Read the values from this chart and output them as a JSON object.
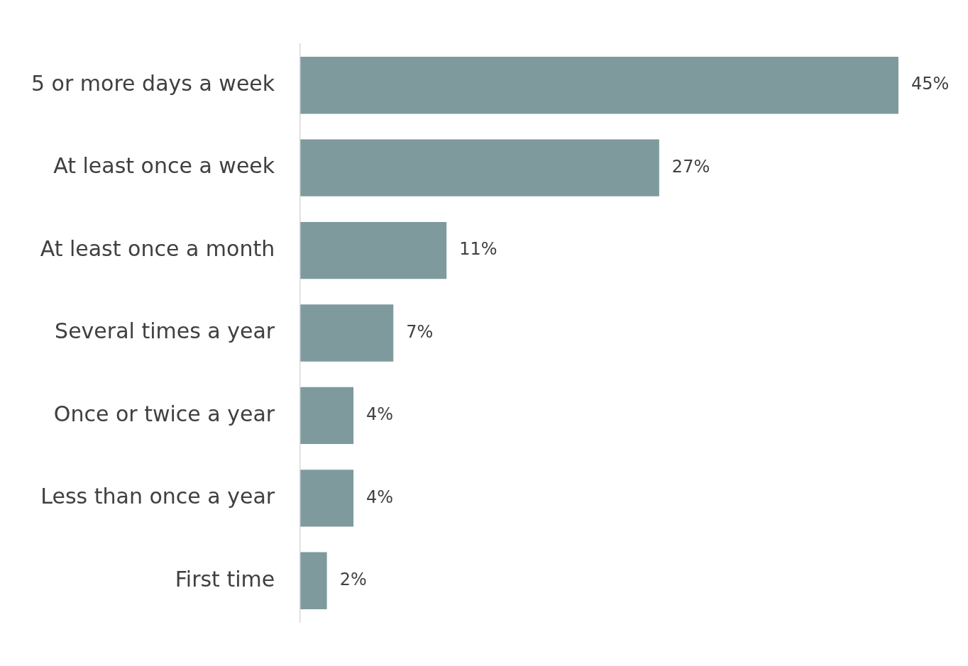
{
  "chart_data": {
    "type": "bar",
    "orientation": "horizontal",
    "categories": [
      "5 or more days a week",
      "At least once a week",
      "At least once a month",
      "Several times a year",
      "Once or twice a year",
      "Less than once a year",
      "First time"
    ],
    "values": [
      45,
      27,
      11,
      7,
      4,
      4,
      2
    ],
    "value_labels": [
      "45%",
      "27%",
      "11%",
      "7%",
      "4%",
      "4%",
      "2%"
    ],
    "color": "#7f9a9c",
    "grid": false,
    "legend": false
  }
}
